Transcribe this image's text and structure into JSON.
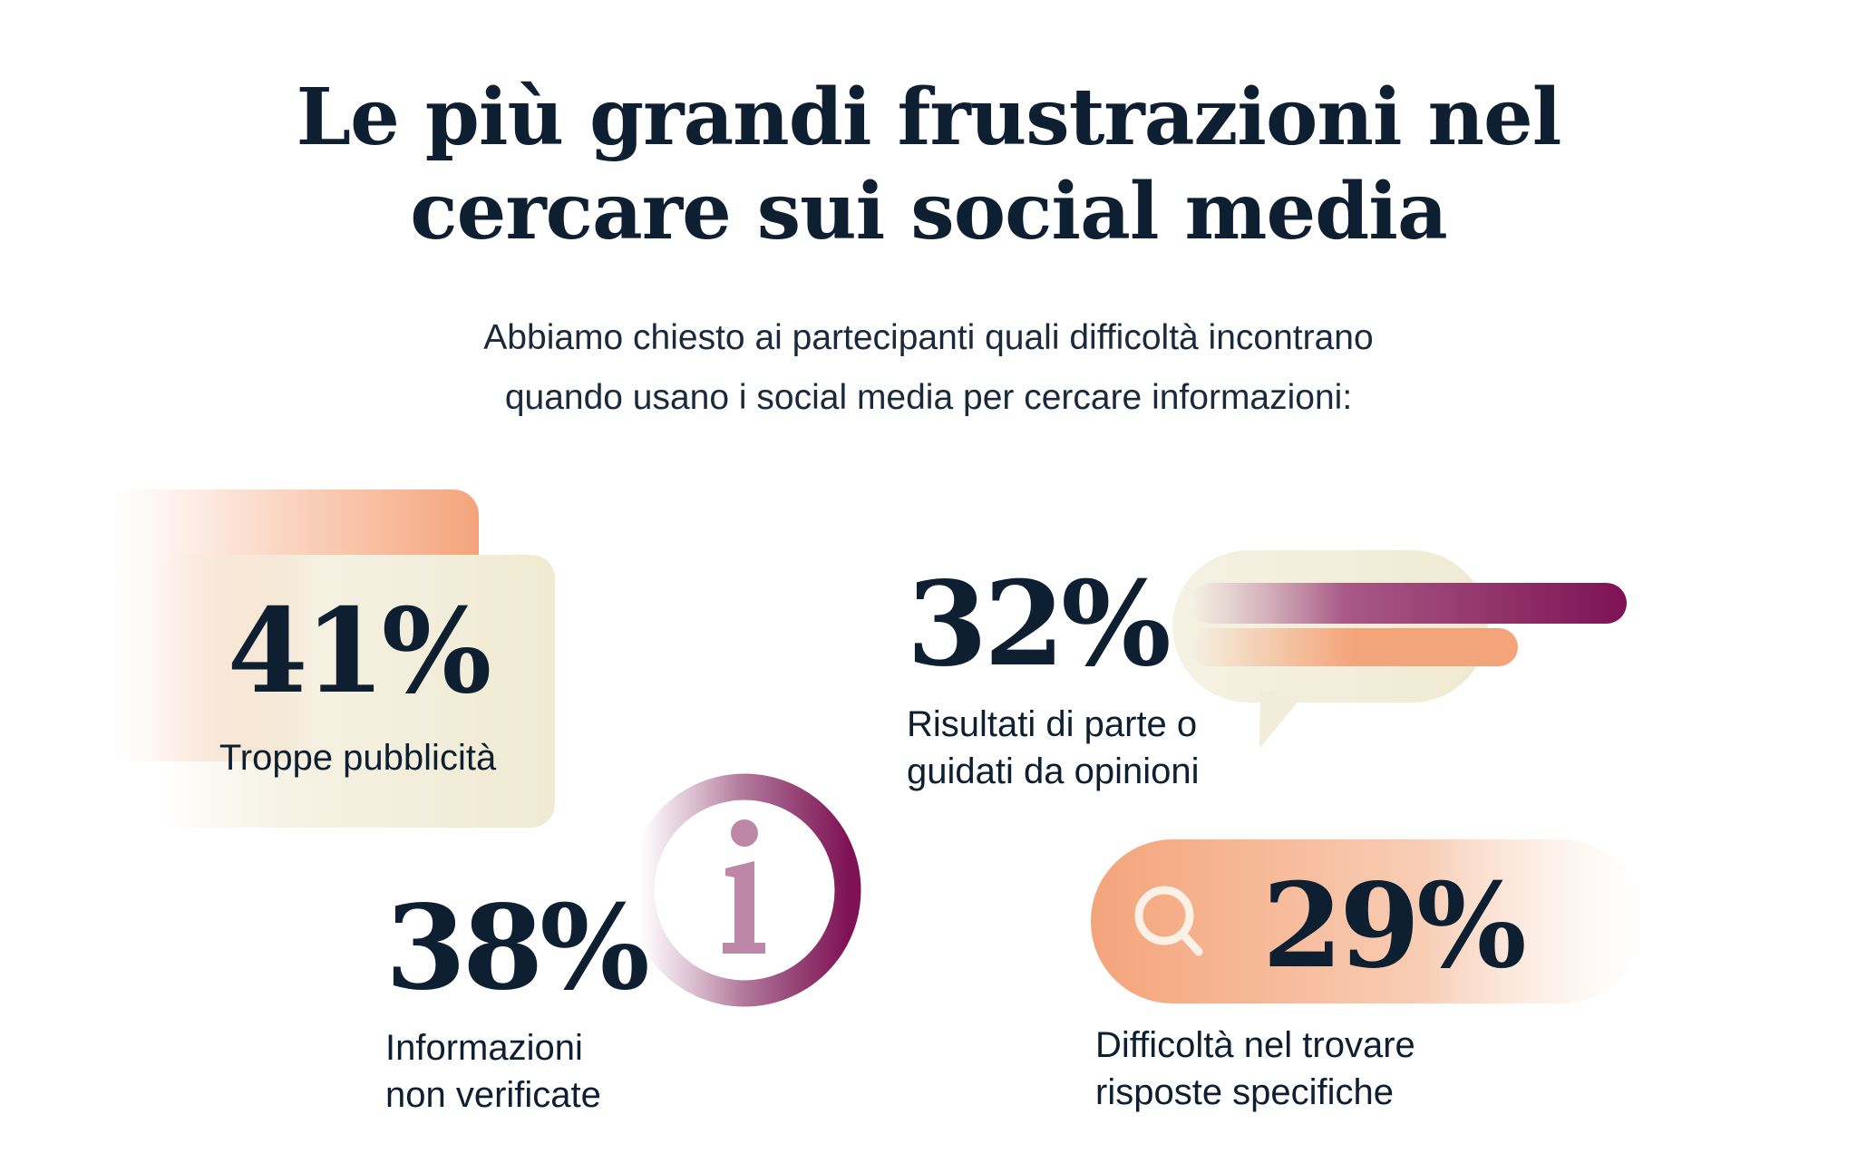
{
  "header": {
    "title_line1": "Le più grandi frustrazioni nel",
    "title_line2": "cercare sui social media",
    "subtitle_line1": "Abbiamo chiesto ai partecipanti quali difficoltà incontrano",
    "subtitle_line2": "quando usano i social media per cercare informazioni:"
  },
  "stats": [
    {
      "value": "41%",
      "label_line1": "Troppe pubblicità",
      "label_line2": "",
      "icon": "card-stack-icon"
    },
    {
      "value": "32%",
      "label_line1": "Risultati di parte o",
      "label_line2": "guidati da opinioni",
      "icon": "speech-bubble-icon"
    },
    {
      "value": "38%",
      "label_line1": "Informazioni",
      "label_line2": "non verificate",
      "icon": "info-icon"
    },
    {
      "value": "29%",
      "label_line1": "Difficoltà nel trovare",
      "label_line2": "risposte specifiche",
      "icon": "search-icon"
    }
  ],
  "colors": {
    "text": "#0d1f30",
    "orange": "#f4a47a",
    "cream": "#f0ead2",
    "plum": "#7e1254",
    "mauve": "#be86a7"
  }
}
